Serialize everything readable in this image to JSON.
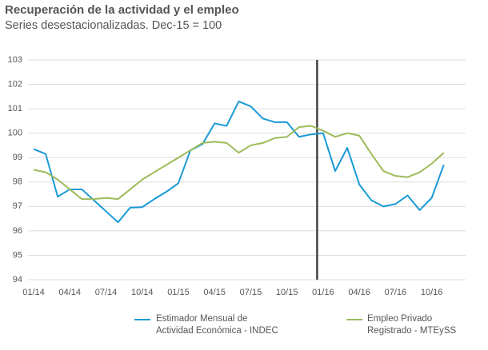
{
  "chart_data": {
    "type": "line",
    "title": "Recuperación de la actividad y el empleo",
    "subtitle": "Series desestacionalizadas. Dec-15 = 100",
    "categories": [
      "01/14",
      null,
      null,
      "04/14",
      null,
      null,
      "07/14",
      null,
      null,
      "10/14",
      null,
      null,
      "01/15",
      null,
      null,
      "04/15",
      null,
      null,
      "07/15",
      null,
      null,
      "10/15",
      null,
      null,
      "01/16",
      null,
      null,
      "04/16",
      null,
      null,
      "07/16",
      null,
      null,
      "10/16",
      null
    ],
    "series": [
      {
        "name": "Estimador Mensual de\nActividad Económica - INDEC",
        "color": "#1a9ad6",
        "values": [
          99.35,
          99.15,
          97.4,
          97.7,
          97.7,
          97.25,
          96.8,
          96.35,
          96.95,
          96.97,
          97.3,
          97.6,
          97.95,
          99.3,
          99.55,
          100.4,
          100.3,
          101.3,
          101.1,
          100.6,
          100.45,
          100.45,
          99.85,
          99.95,
          100.0,
          98.45,
          99.4,
          97.9,
          97.25,
          97.0,
          97.1,
          97.45,
          96.85,
          97.35,
          98.7
        ]
      },
      {
        "name": "Empleo Privado\nRegistrado - MTEySS",
        "color": "#9dbb5a",
        "values": [
          98.5,
          98.4,
          98.1,
          97.7,
          97.3,
          97.3,
          97.35,
          97.3,
          97.7,
          98.1,
          98.4,
          98.7,
          99.0,
          99.3,
          99.6,
          99.65,
          99.6,
          99.2,
          99.5,
          99.6,
          99.8,
          99.85,
          100.25,
          100.3,
          100.1,
          99.85,
          100.0,
          99.9,
          99.15,
          98.45,
          98.25,
          98.2,
          98.4,
          98.75,
          99.2
        ]
      }
    ],
    "ylim": [
      94,
      103
    ],
    "yticks": [
      94,
      95,
      96,
      97,
      98,
      99,
      100,
      101,
      102,
      103
    ],
    "grid": true
  }
}
